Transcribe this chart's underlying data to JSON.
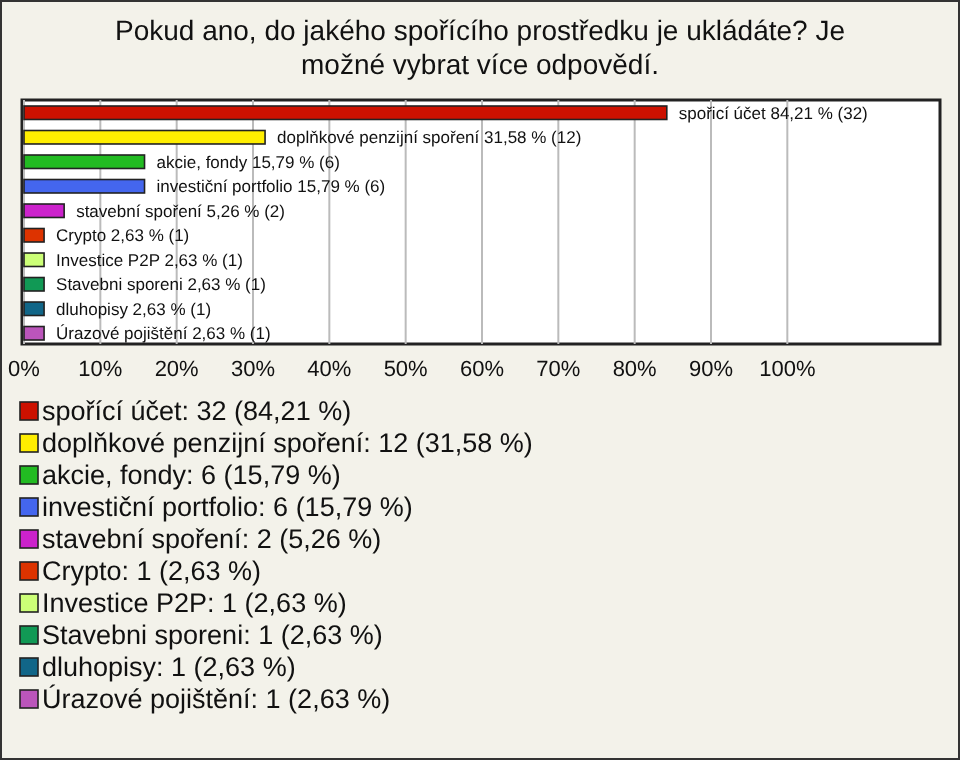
{
  "chart_data": {
    "type": "bar",
    "orientation": "horizontal",
    "title": "Pokud ano, do jakého spořícího prostředku je ukládáte? Je možné vybrat více odpovědí.",
    "categories": [
      null,
      null,
      null,
      null,
      null,
      null,
      null,
      null,
      null,
      null
    ],
    "values": [
      84.21,
      31.58,
      15.79,
      15.79,
      5.26,
      2.63,
      2.63,
      2.63,
      2.63,
      2.63
    ],
    "colors": [
      "#cc1100",
      "#ffee00",
      "#22bb22",
      "#4466ee",
      "#cc22cc",
      "#dd3300",
      "#ccff77",
      "#119955",
      "#116688",
      "#bb55bb"
    ],
    "value_labels": [
      "spořicí účet 84,21 % (32)",
      "doplňkové penzijní spoření 31,58 % (12)",
      "akcie, fondy 15,79 % (6)",
      "investiční portfolio 15,79 % (6)",
      "stavební spoření 5,26 % (2)",
      "Crypto 2,63 % (1)",
      "Investice P2P 2,63 % (1)",
      "Stavebni sporeni 2,63 % (1)",
      "dluhopisy 2,63 % (1)",
      "Úrazové pojištění 2,63 % (1)"
    ],
    "annotations": [
      "spořící účet: 32 (84,21 %)",
      "doplňkové penzijní spoření: 12 (31,58 %)",
      "akcie, fondy: 6 (15,79 %)",
      "investiční portfolio: 6 (15,79 %)",
      "stavební spoření: 2 (5,26 %)",
      "Crypto: 1 (2,63 %)",
      "Investice P2P: 1 (2,63 %)",
      "Stavebni sporeni: 1 (2,63 %)",
      "dluhopisy: 1 (2,63 %)",
      "Úrazové pojištění: 1 (2,63 %)"
    ],
    "xlim": [
      0,
      120
    ],
    "xticks": [
      {
        "value": 0,
        "label": "0%"
      },
      {
        "value": 10,
        "label": "10%"
      },
      {
        "value": 20,
        "label": "20%"
      },
      {
        "value": 30,
        "label": "30%"
      },
      {
        "value": 40,
        "label": "40%"
      },
      {
        "value": 50,
        "label": "50%"
      },
      {
        "value": 60,
        "label": "60%"
      },
      {
        "value": 70,
        "label": "70%"
      },
      {
        "value": 80,
        "label": "80%"
      },
      {
        "value": 90,
        "label": "90%"
      },
      {
        "value": 100,
        "label": "100%"
      }
    ],
    "grid": "x"
  }
}
